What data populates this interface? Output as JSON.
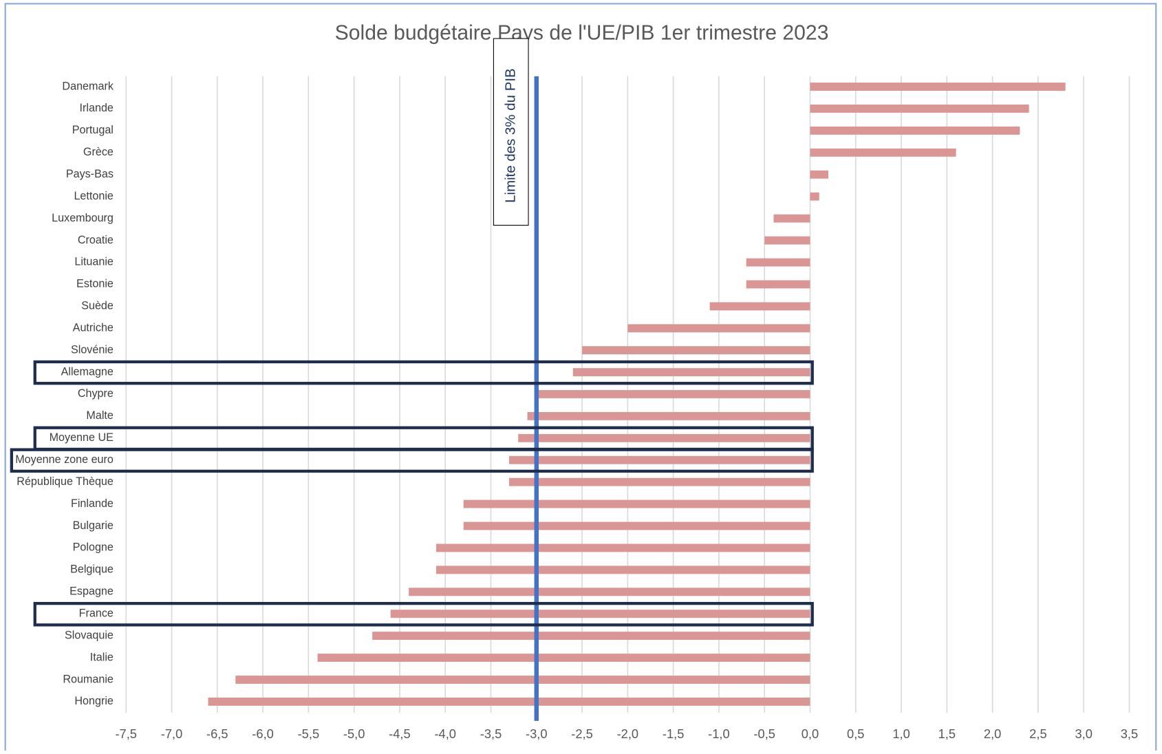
{
  "chart_data": {
    "type": "bar",
    "orientation": "horizontal",
    "title": "Solde budgétaire Pays de l'UE/PIB 1er trimestre 2023",
    "categories": [
      "Danemark",
      "Irlande",
      "Portugal",
      "Grèce",
      "Pays-Bas",
      "Lettonie",
      "Luxembourg",
      "Croatie",
      "Lituanie",
      "Estonie",
      "Suède",
      "Autriche",
      "Slovénie",
      "Allemagne",
      "Chypre",
      "Malte",
      "Moyenne UE",
      "Moyenne zone euro",
      "République Thèque",
      "Finlande",
      "Bulgarie",
      "Pologne",
      "Belgique",
      "Espagne",
      "France",
      "Slovaquie",
      "Italie",
      "Roumanie",
      "Hongrie"
    ],
    "values": [
      2.8,
      2.4,
      2.3,
      1.6,
      0.2,
      0.1,
      -0.4,
      -0.5,
      -0.7,
      -0.7,
      -1.1,
      -2.0,
      -2.5,
      -2.6,
      -3.0,
      -3.1,
      -3.2,
      -3.3,
      -3.3,
      -3.8,
      -3.8,
      -4.1,
      -4.1,
      -4.4,
      -4.6,
      -4.8,
      -5.4,
      -6.3,
      -6.6
    ],
    "color": "#da9694",
    "xlim": [
      -7.5,
      3.5
    ],
    "xticks": [
      {
        "value": -7.5,
        "label": "-7,5"
      },
      {
        "value": -7,
        "label": "-7,0"
      },
      {
        "value": -6.5,
        "label": "-6,5"
      },
      {
        "value": -6,
        "label": "-6,0"
      },
      {
        "value": -5.5,
        "label": "-5,5"
      },
      {
        "value": -5,
        "label": "-5,0"
      },
      {
        "value": -4.5,
        "label": "-4,5"
      },
      {
        "value": -4,
        "label": "-4,0"
      },
      {
        "value": -3.5,
        "label": "-3,5"
      },
      {
        "value": -3,
        "label": "-3,0"
      },
      {
        "value": -2.5,
        "label": "-2,5"
      },
      {
        "value": -2,
        "label": "-2,0"
      },
      {
        "value": -1.5,
        "label": "-1,5"
      },
      {
        "value": -1,
        "label": "-1,0"
      },
      {
        "value": -0.5,
        "label": "-0,5"
      },
      {
        "value": 0,
        "label": "0,0"
      },
      {
        "value": 0.5,
        "label": "0,5"
      },
      {
        "value": 1,
        "label": "1,0"
      },
      {
        "value": 1.5,
        "label": "1,5"
      },
      {
        "value": 2,
        "label": "2,0"
      },
      {
        "value": 2.5,
        "label": "2,5"
      },
      {
        "value": 3,
        "label": "3,0"
      },
      {
        "value": 3.5,
        "label": "3,5"
      }
    ],
    "grid": true,
    "reference_line": {
      "value": -3,
      "label": "Limite des 3% du PIB",
      "color": "#4472c4"
    },
    "highlight": [
      13,
      16,
      17,
      24
    ]
  }
}
